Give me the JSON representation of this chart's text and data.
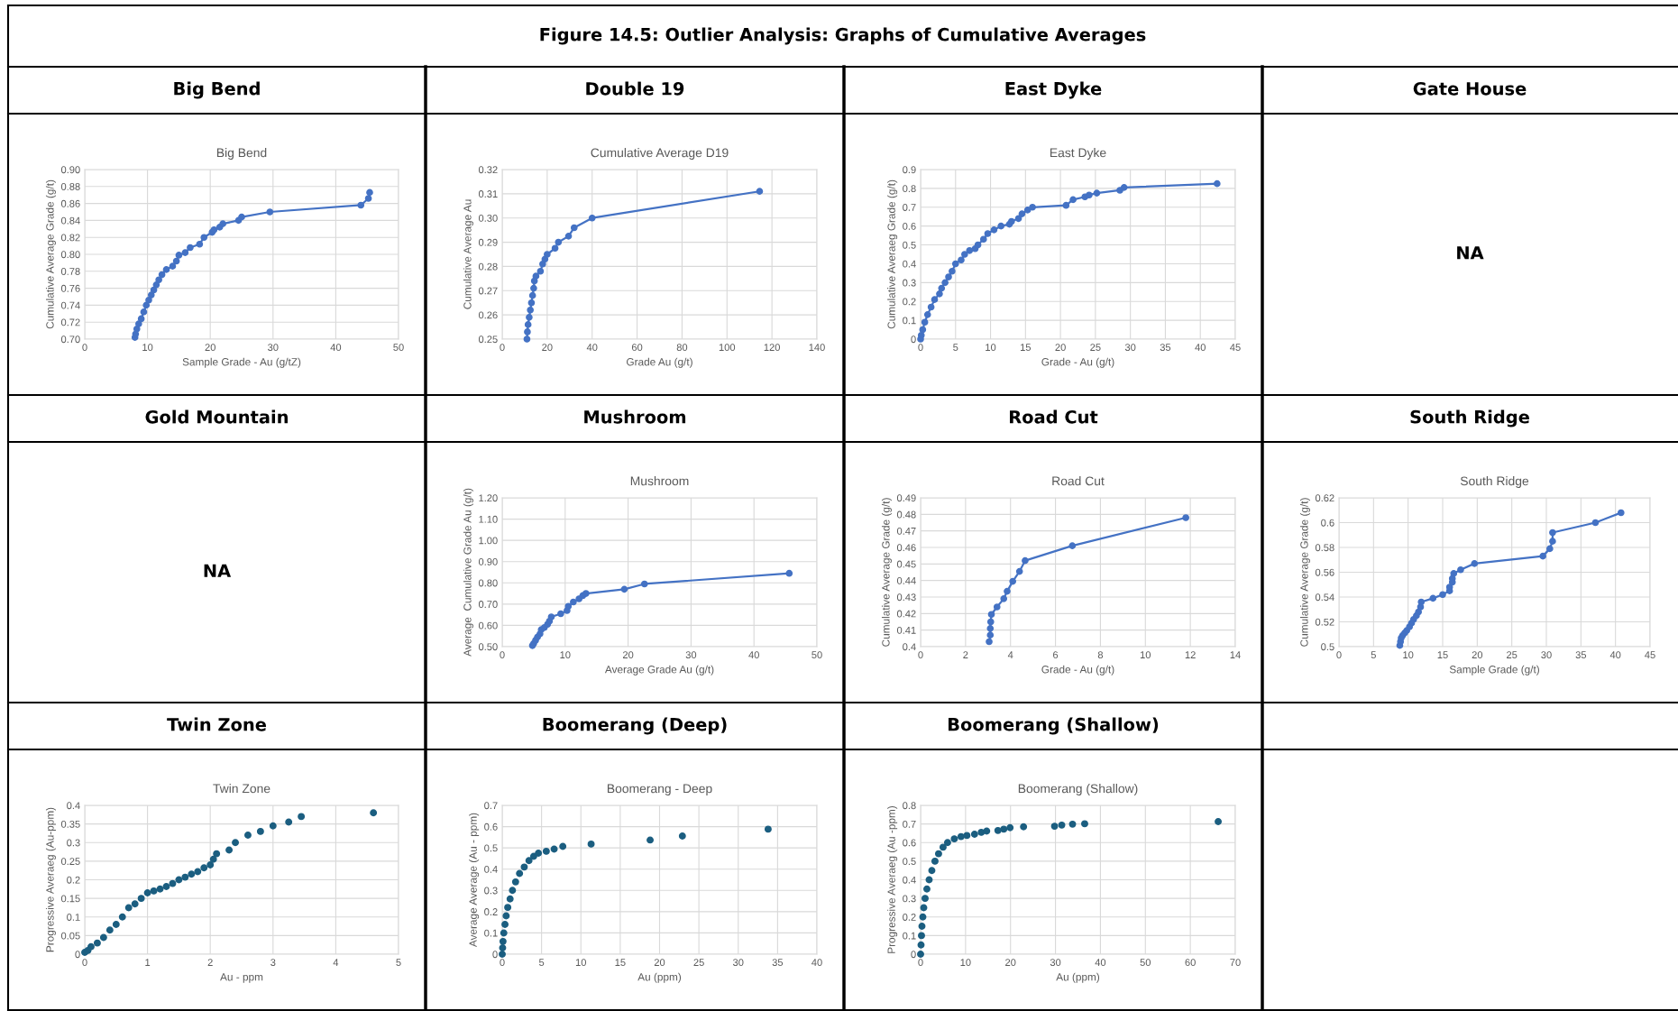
{
  "chart_data": [
    {
      "type": "other",
      "title": "Figure 14.5: Outlier Analysis: Graphs of Cumulative Averages"
    },
    {
      "type": "line",
      "title": "Big Bend",
      "subtitle": "Big Bend",
      "xlabel": "Sample Grade - Au (g/tZ)",
      "ylabel": "Cumulative Average Grade (g/t)",
      "marker": "circle",
      "line_style": "solid",
      "grid": true,
      "legend": false,
      "xlim": [
        0,
        50
      ],
      "xticks": [
        0,
        10,
        20,
        30,
        40,
        50
      ],
      "ylim": [
        0.7,
        0.9
      ],
      "yticks": [
        {
          "value": 0.7,
          "label": "0.70"
        },
        {
          "value": 0.72,
          "label": "0.72"
        },
        {
          "value": 0.74,
          "label": "0.74"
        },
        {
          "value": 0.76,
          "label": "0.76"
        },
        {
          "value": 0.78,
          "label": "0.78"
        },
        {
          "value": 0.8,
          "label": "0.80"
        },
        {
          "value": 0.82,
          "label": "0.82"
        },
        {
          "value": 0.84,
          "label": "0.84"
        },
        {
          "value": 0.86,
          "label": "0.86"
        },
        {
          "value": 0.88,
          "label": "0.88"
        },
        {
          "value": 0.9,
          "label": "0.90"
        }
      ],
      "series": [
        {
          "color": "#4472c4",
          "x": [
            8.0,
            8.1,
            8.3,
            8.6,
            9.0,
            9.4,
            9.8,
            10.2,
            10.6,
            11.0,
            11.4,
            11.8,
            12.3,
            13.0,
            14.0,
            14.6,
            15.0,
            16.0,
            16.8,
            18.3,
            19.0,
            20.3,
            20.6,
            21.5,
            22.0,
            24.5,
            25.0,
            29.5,
            44.0,
            45.2,
            45.4
          ],
          "values": [
            0.702,
            0.706,
            0.712,
            0.718,
            0.724,
            0.732,
            0.74,
            0.746,
            0.752,
            0.758,
            0.764,
            0.77,
            0.776,
            0.782,
            0.786,
            0.792,
            0.799,
            0.802,
            0.808,
            0.812,
            0.82,
            0.826,
            0.829,
            0.832,
            0.836,
            0.84,
            0.844,
            0.85,
            0.858,
            0.866,
            0.873
          ]
        }
      ]
    },
    {
      "type": "line",
      "title": "Double 19",
      "subtitle": "Cumulative Average D19",
      "xlabel": "Grade Au (g/t)",
      "ylabel": "Cumulative Average Au",
      "marker": "circle",
      "line_style": "solid",
      "grid": true,
      "legend": false,
      "xlim": [
        0,
        140
      ],
      "xticks": [
        0,
        20,
        40,
        60,
        80,
        100,
        120,
        140
      ],
      "ylim": [
        0.25,
        0.32
      ],
      "yticks": [
        0.25,
        0.26,
        0.27,
        0.28,
        0.29,
        {
          "value": 0.3,
          "label": "0.30"
        },
        0.31,
        0.32
      ],
      "series": [
        {
          "color": "#4472c4",
          "x": [
            11,
            11.2,
            11.5,
            12,
            12.5,
            13,
            13.5,
            14,
            14.3,
            15,
            17,
            18,
            19,
            20,
            23.5,
            25,
            29.5,
            32,
            40,
            114.5
          ],
          "values": [
            0.25,
            0.253,
            0.256,
            0.259,
            0.262,
            0.265,
            0.268,
            0.271,
            0.274,
            0.276,
            0.278,
            0.281,
            0.283,
            0.285,
            0.2875,
            0.29,
            0.2925,
            0.296,
            0.3,
            0.311
          ]
        }
      ]
    },
    {
      "type": "line",
      "title": "East Dyke",
      "subtitle": "East Dyke",
      "xlabel": "Grade - Au (g/t)",
      "ylabel": "Cumulative Averaeg Grade (g/t)",
      "marker": "circle",
      "line_style": "solid",
      "grid": true,
      "legend": false,
      "xlim": [
        0,
        45
      ],
      "xticks": [
        0,
        5,
        10,
        15,
        20,
        25,
        30,
        35,
        40,
        45
      ],
      "ylim": [
        0,
        0.9
      ],
      "yticks": [
        0,
        0.1,
        0.2,
        0.3,
        0.4,
        0.5,
        0.6,
        0.7,
        0.8,
        0.9
      ],
      "series": [
        {
          "color": "#4472c4",
          "x": [
            0,
            0.1,
            0.3,
            0.6,
            1.0,
            1.5,
            2.0,
            2.7,
            3.0,
            3.5,
            4.0,
            4.5,
            5.0,
            5.8,
            6.3,
            7.0,
            7.8,
            8.2,
            9.0,
            9.6,
            10.5,
            11.5,
            12.7,
            13.0,
            14.0,
            14.5,
            15.3,
            16.0,
            20.8,
            21.8,
            23.5,
            24.1,
            25.2,
            28.5,
            29.1,
            42.4
          ],
          "values": [
            0.0,
            0.02,
            0.05,
            0.09,
            0.13,
            0.17,
            0.21,
            0.24,
            0.27,
            0.3,
            0.33,
            0.36,
            0.4,
            0.42,
            0.45,
            0.47,
            0.48,
            0.5,
            0.53,
            0.56,
            0.58,
            0.6,
            0.61,
            0.625,
            0.64,
            0.665,
            0.685,
            0.7,
            0.71,
            0.74,
            0.755,
            0.765,
            0.775,
            0.79,
            0.805,
            0.825
          ]
        }
      ]
    },
    {
      "type": "other",
      "title": "Gate House",
      "annotations": [
        "NA"
      ]
    },
    {
      "type": "other",
      "title": "Gold Mountain",
      "annotations": [
        "NA"
      ]
    },
    {
      "type": "line",
      "title": "Mushroom",
      "subtitle": "Mushroom",
      "xlabel": "Average Grade Au (g/t)",
      "ylabel": "Average  Cumulative Grade Au (g/t)",
      "marker": "circle",
      "line_style": "solid",
      "grid": true,
      "legend": false,
      "xlim": [
        0,
        50
      ],
      "xticks": [
        0,
        10,
        20,
        30,
        40,
        50
      ],
      "ylim": [
        0.5,
        1.2
      ],
      "yticks": [
        {
          "value": 0.5,
          "label": "0.50"
        },
        {
          "value": 0.6,
          "label": "0.60"
        },
        {
          "value": 0.7,
          "label": "0.70"
        },
        {
          "value": 0.8,
          "label": "0.80"
        },
        {
          "value": 0.9,
          "label": "0.90"
        },
        {
          "value": 1.0,
          "label": "1.00"
        },
        {
          "value": 1.1,
          "label": "1.10"
        },
        {
          "value": 1.2,
          "label": "1.20"
        }
      ],
      "series": [
        {
          "color": "#4472c4",
          "x": [
            4.8,
            5.0,
            5.3,
            5.6,
            6.0,
            6.2,
            6.7,
            7.2,
            7.5,
            7.8,
            9.3,
            10.3,
            10.5,
            11.3,
            12.2,
            12.8,
            13.3,
            19.4,
            22.6,
            45.6
          ],
          "values": [
            0.505,
            0.515,
            0.53,
            0.545,
            0.56,
            0.58,
            0.59,
            0.605,
            0.62,
            0.64,
            0.655,
            0.67,
            0.69,
            0.71,
            0.725,
            0.74,
            0.75,
            0.77,
            0.795,
            0.845
          ]
        }
      ]
    },
    {
      "type": "line",
      "title": "Road Cut",
      "subtitle": "Road Cut",
      "xlabel": "Grade - Au (g/t)",
      "ylabel": "Cumulative Average Grade (g/t)",
      "marker": "circle",
      "line_style": "solid",
      "grid": true,
      "legend": false,
      "xlim": [
        0,
        14
      ],
      "xticks": [
        0,
        2,
        4,
        6,
        8,
        10,
        12,
        14
      ],
      "ylim": [
        0.4,
        0.49
      ],
      "yticks": [
        0.4,
        0.41,
        0.42,
        0.43,
        0.44,
        0.45,
        0.46,
        0.47,
        0.48,
        0.49
      ],
      "series": [
        {
          "color": "#4472c4",
          "x": [
            3.05,
            3.1,
            3.1,
            3.12,
            3.15,
            3.4,
            3.7,
            3.85,
            4.1,
            4.4,
            4.65,
            6.75,
            11.8
          ],
          "values": [
            0.403,
            0.407,
            0.411,
            0.415,
            0.4195,
            0.424,
            0.429,
            0.4335,
            0.4395,
            0.4455,
            0.452,
            0.461,
            0.478
          ]
        }
      ]
    },
    {
      "type": "line",
      "title": "South Ridge",
      "subtitle": "South Ridge",
      "xlabel": "Sample Grade (g/t)",
      "ylabel": "Cumulative Average Grade (g/t)",
      "marker": "circle",
      "line_style": "solid",
      "grid": true,
      "legend": false,
      "xlim": [
        0,
        45
      ],
      "xticks": [
        0,
        5,
        10,
        15,
        20,
        25,
        30,
        35,
        40,
        45
      ],
      "ylim": [
        0.5,
        0.62
      ],
      "yticks": [
        0.5,
        0.52,
        0.54,
        0.56,
        0.58,
        0.6,
        0.62
      ],
      "series": [
        {
          "color": "#4472c4",
          "x": [
            8.8,
            8.9,
            9.0,
            9.2,
            9.5,
            9.8,
            10.2,
            10.5,
            10.8,
            11.2,
            11.5,
            11.8,
            11.9,
            13.6,
            15.0,
            16.0,
            16.0,
            16.4,
            16.4,
            16.6,
            17.6,
            19.6,
            29.5,
            30.5,
            30.9,
            30.9,
            37.1,
            40.8
          ],
          "values": [
            0.501,
            0.504,
            0.507,
            0.509,
            0.511,
            0.513,
            0.516,
            0.519,
            0.522,
            0.525,
            0.528,
            0.532,
            0.536,
            0.539,
            0.542,
            0.545,
            0.548,
            0.552,
            0.555,
            0.559,
            0.562,
            0.567,
            0.573,
            0.579,
            0.585,
            0.592,
            0.6,
            0.608
          ]
        }
      ]
    },
    {
      "type": "scatter",
      "title": "Twin Zone",
      "subtitle": "Twin Zone",
      "xlabel": "Au - ppm",
      "ylabel": "Progressive Averaeg (Au-ppm)",
      "marker": "circle",
      "grid": true,
      "legend": false,
      "xlim": [
        0,
        5
      ],
      "xticks": [
        0,
        1,
        2,
        3,
        4,
        5
      ],
      "ylim": [
        0,
        0.4
      ],
      "yticks": [
        0,
        0.05,
        0.1,
        0.15,
        0.2,
        0.25,
        0.3,
        0.35,
        0.4
      ],
      "series": [
        {
          "color": "#1b5e80",
          "x": [
            0,
            0.05,
            0.1,
            0.2,
            0.3,
            0.4,
            0.5,
            0.6,
            0.7,
            0.8,
            0.9,
            1.0,
            1.1,
            1.2,
            1.3,
            1.4,
            1.5,
            1.6,
            1.7,
            1.8,
            1.9,
            2.0,
            2.05,
            2.1,
            2.3,
            2.4,
            2.6,
            2.8,
            3.0,
            3.25,
            3.45,
            4.6
          ],
          "values": [
            0.005,
            0.01,
            0.02,
            0.03,
            0.045,
            0.065,
            0.08,
            0.1,
            0.125,
            0.135,
            0.15,
            0.165,
            0.17,
            0.175,
            0.182,
            0.19,
            0.2,
            0.207,
            0.215,
            0.222,
            0.232,
            0.24,
            0.255,
            0.27,
            0.28,
            0.3,
            0.32,
            0.33,
            0.345,
            0.355,
            0.37,
            0.38
          ]
        }
      ]
    },
    {
      "type": "scatter",
      "title": "Boomerang (Deep)",
      "subtitle": "Boomerang - Deep",
      "xlabel": "Au (ppm)",
      "ylabel": "Average Average (Au - ppm)",
      "marker": "circle",
      "grid": true,
      "legend": false,
      "xlim": [
        0,
        40
      ],
      "xticks": [
        0,
        5,
        10,
        15,
        20,
        25,
        30,
        35,
        40
      ],
      "ylim": [
        0,
        0.7
      ],
      "yticks": [
        0,
        0.1,
        0.2,
        0.3,
        0.4,
        0.5,
        0.6,
        0.7
      ],
      "series": [
        {
          "color": "#1b5e80",
          "x": [
            0,
            0.05,
            0.1,
            0.2,
            0.35,
            0.5,
            0.7,
            1.0,
            1.3,
            1.7,
            2.2,
            2.8,
            3.4,
            4.0,
            4.6,
            5.6,
            6.6,
            7.7,
            11.3,
            18.8,
            22.9,
            33.8
          ],
          "values": [
            0.0,
            0.03,
            0.06,
            0.1,
            0.14,
            0.18,
            0.22,
            0.26,
            0.3,
            0.34,
            0.38,
            0.41,
            0.44,
            0.46,
            0.475,
            0.484,
            0.494,
            0.507,
            0.518,
            0.537,
            0.556,
            0.588
          ]
        }
      ]
    },
    {
      "type": "scatter",
      "title": "Boomerang (Shallow)",
      "subtitle": "Boomerang (Shallow)",
      "xlabel": "Au (ppm)",
      "ylabel": "Progressive Averaeg (Au -ppm)",
      "marker": "circle",
      "grid": true,
      "legend": false,
      "xlim": [
        0,
        70
      ],
      "xticks": [
        0,
        10,
        20,
        30,
        40,
        50,
        60,
        70
      ],
      "ylim": [
        0,
        0.8
      ],
      "yticks": [
        0,
        0.1,
        0.2,
        0.3,
        0.4,
        0.5,
        0.6,
        0.7,
        0.8
      ],
      "series": [
        {
          "color": "#1b5e80",
          "x": [
            0,
            0.1,
            0.2,
            0.3,
            0.5,
            0.7,
            1.0,
            1.4,
            1.9,
            2.5,
            3.2,
            4.0,
            5.0,
            6.0,
            7.5,
            9.0,
            10.3,
            12.0,
            13.5,
            14.7,
            17.2,
            18.5,
            19.9,
            22.9,
            29.8,
            31.4,
            33.8,
            36.5,
            66.2
          ],
          "values": [
            0.0,
            0.05,
            0.1,
            0.15,
            0.2,
            0.25,
            0.3,
            0.35,
            0.4,
            0.45,
            0.5,
            0.54,
            0.575,
            0.6,
            0.62,
            0.632,
            0.638,
            0.645,
            0.655,
            0.662,
            0.665,
            0.672,
            0.68,
            0.685,
            0.688,
            0.694,
            0.699,
            0.701,
            0.713
          ]
        }
      ]
    }
  ]
}
